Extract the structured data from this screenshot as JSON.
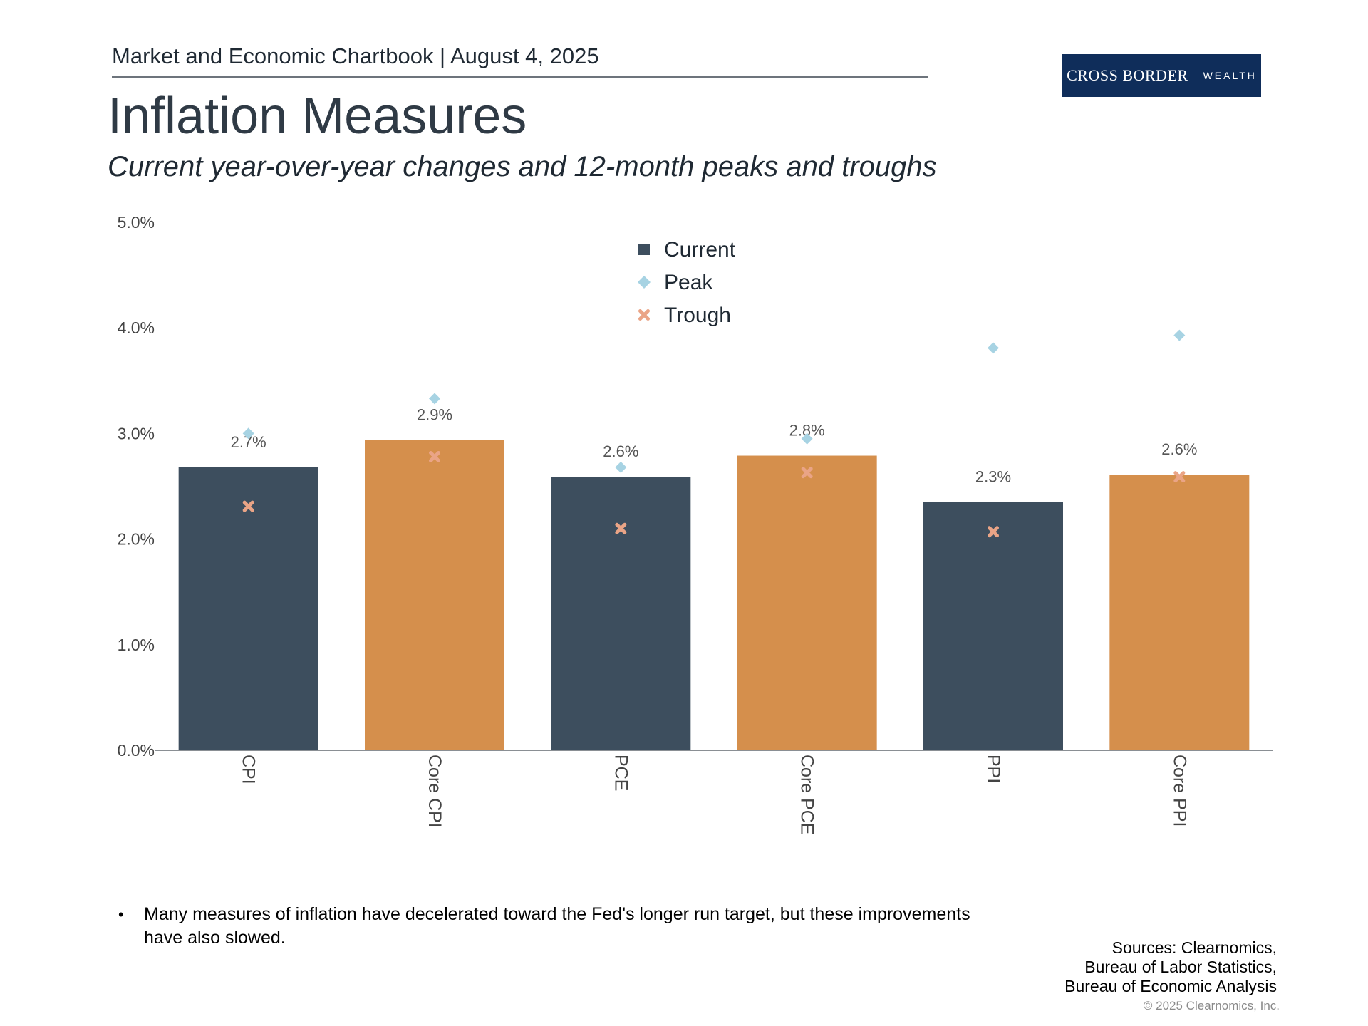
{
  "header": {
    "text": "Market and Economic Chartbook | August 4, 2025",
    "title": "Inflation Measures",
    "subtitle": "Current year-over-year changes and 12-month peaks and troughs"
  },
  "logo": {
    "main": "CROSS BORDER",
    "sub": "WEALTH",
    "background": "#0f2d5a"
  },
  "chart_data": {
    "type": "bar",
    "title": "Inflation Measures",
    "xlabel": "",
    "ylabel": "",
    "ylim": [
      0,
      5
    ],
    "y_ticks": [
      0,
      1,
      2,
      3,
      4,
      5
    ],
    "y_tick_labels": [
      "0.0%",
      "1.0%",
      "2.0%",
      "3.0%",
      "4.0%",
      "5.0%"
    ],
    "grid": false,
    "legend_position": "top-center",
    "categories": [
      "CPI",
      "Core CPI",
      "PCE",
      "Core PCE",
      "PPI",
      "Core PPI"
    ],
    "series": [
      {
        "name": "Current",
        "marker": "bar",
        "values": [
          2.68,
          2.94,
          2.59,
          2.79,
          2.35,
          2.61
        ],
        "labels": [
          "2.7%",
          "2.9%",
          "2.6%",
          "2.8%",
          "2.3%",
          "2.6%"
        ]
      },
      {
        "name": "Peak",
        "marker": "diamond",
        "values": [
          3.0,
          3.33,
          2.68,
          2.95,
          3.81,
          3.93
        ]
      },
      {
        "name": "Trough",
        "marker": "x",
        "values": [
          2.31,
          2.78,
          2.1,
          2.63,
          2.07,
          2.59
        ]
      }
    ],
    "bar_colors": [
      "#3d4e5e",
      "#d58f4c",
      "#3d4e5e",
      "#d58f4c",
      "#3d4e5e",
      "#d58f4c"
    ],
    "legend_colors": {
      "Current": "#3d4e5e",
      "Peak": "#a7d3e3",
      "Trough": "#eaa486"
    }
  },
  "footer": {
    "bullet": "Many measures of inflation have decelerated toward the Fed's longer run target, but these improvements have also slowed.",
    "sources": [
      "Sources: Clearnomics,",
      "Bureau of Labor Statistics,",
      "Bureau of Economic Analysis"
    ],
    "copyright": "© 2025 Clearnomics, Inc."
  }
}
